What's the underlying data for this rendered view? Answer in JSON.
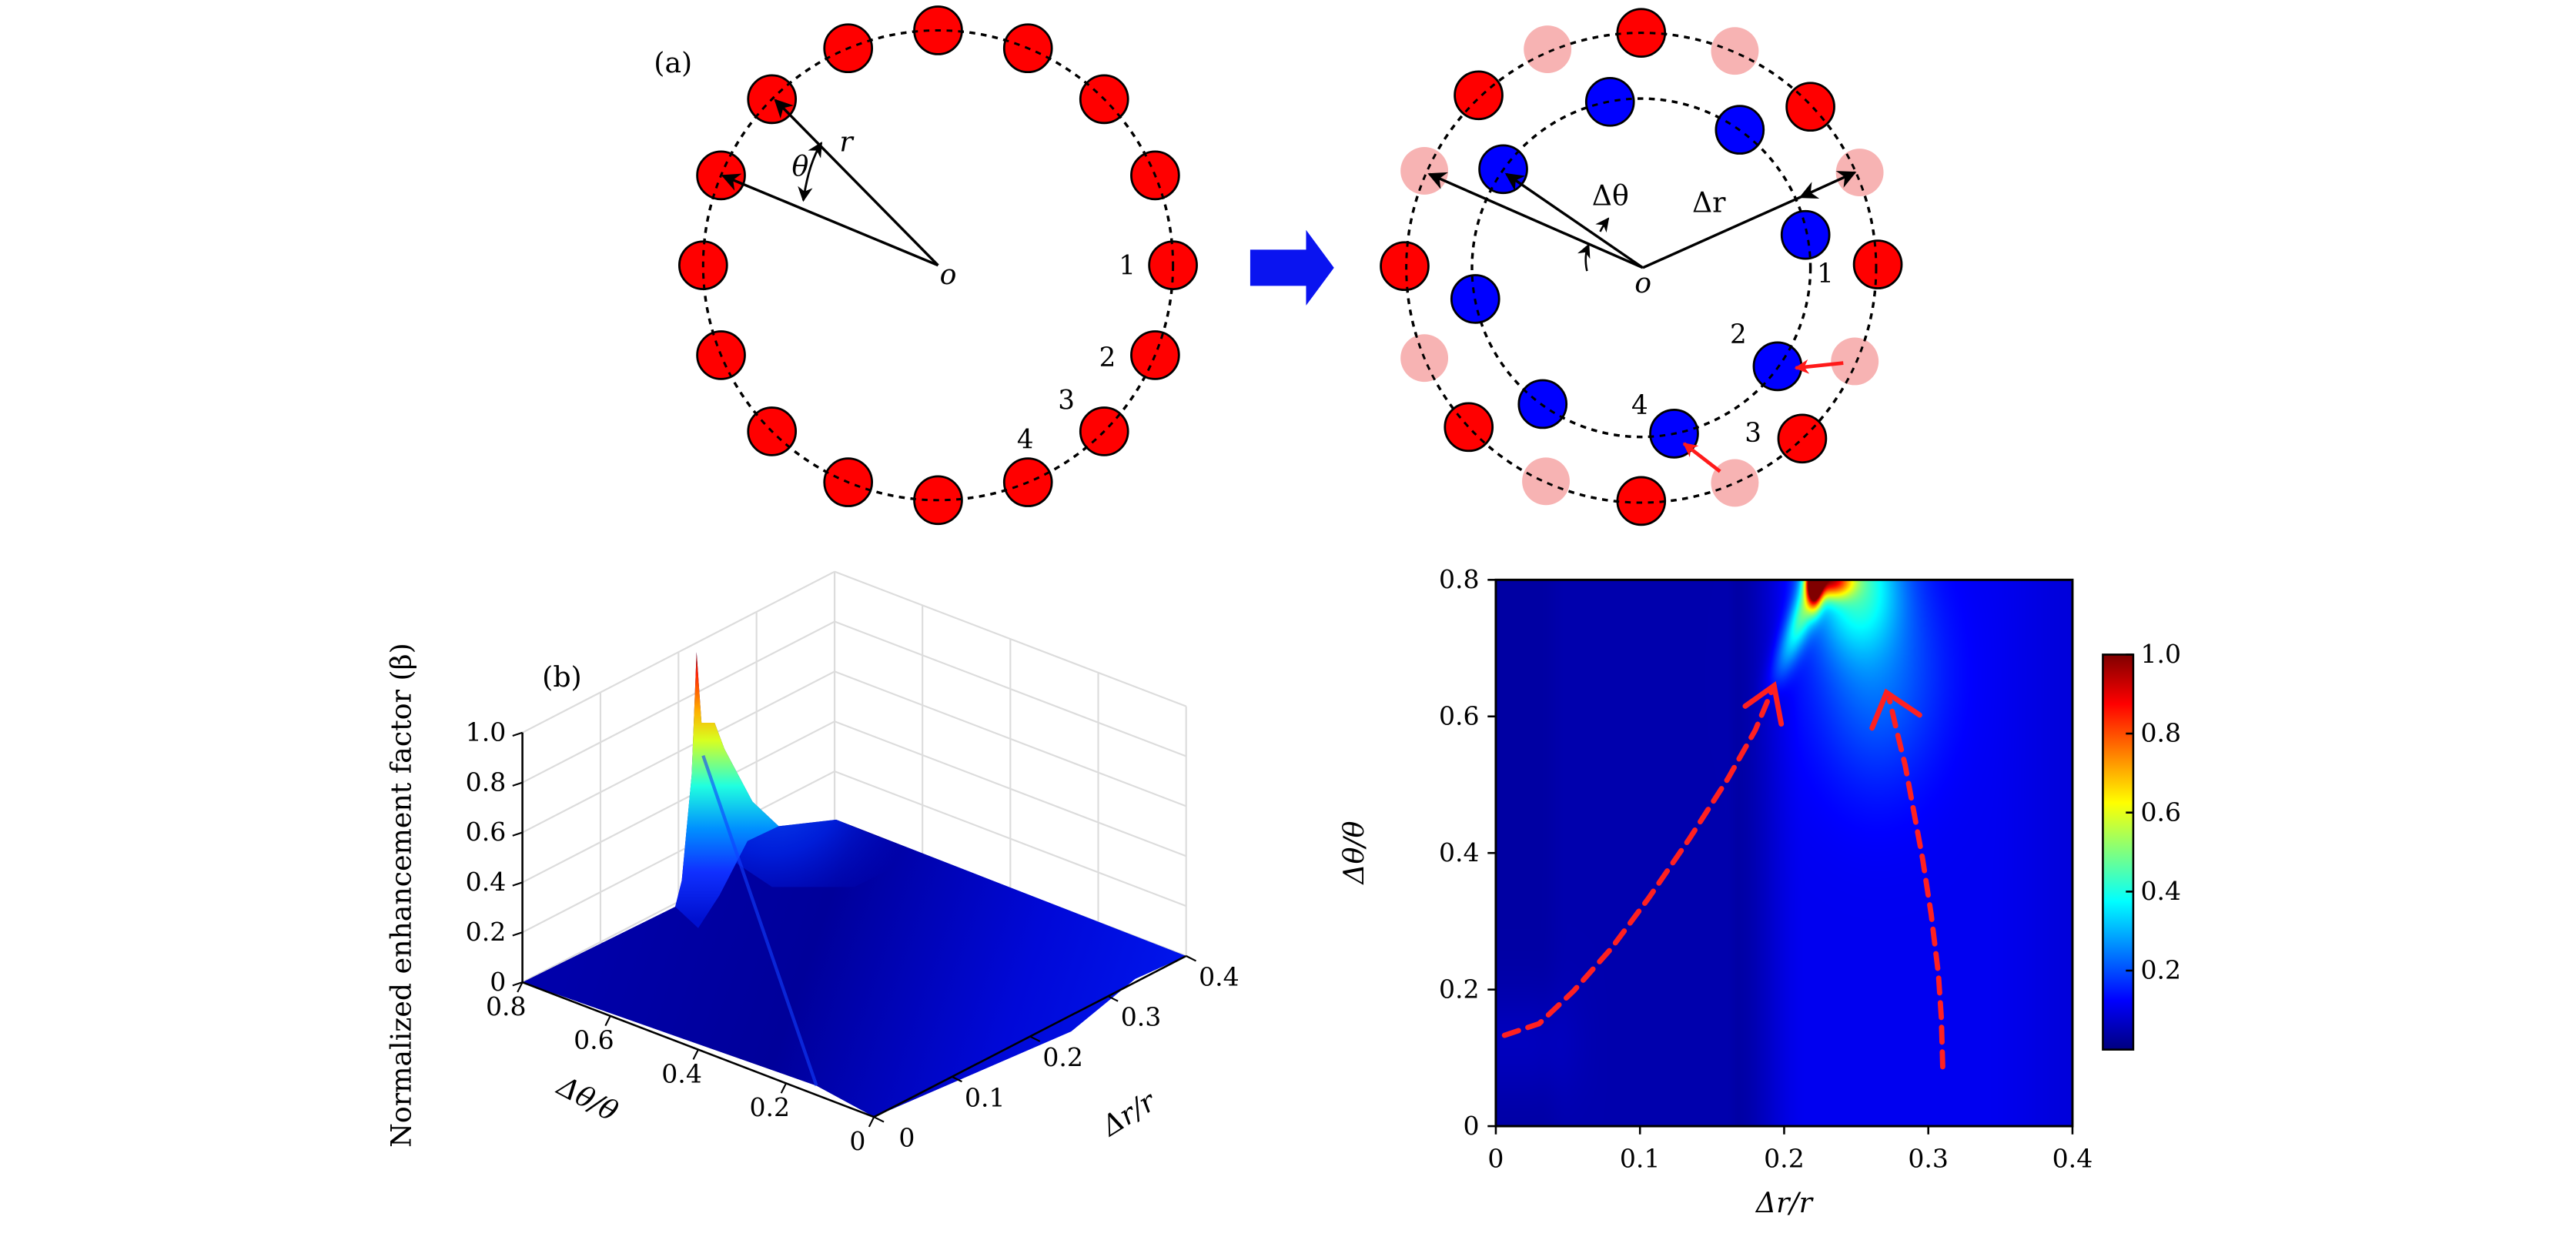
{
  "panel_a": {
    "label": "(a)",
    "left": {
      "theta_label": "θ",
      "r_label": "r",
      "origin_label": "o",
      "numbers": [
        "1",
        "2",
        "3",
        "4"
      ]
    },
    "right": {
      "dtheta_label": "Δθ",
      "dr_label": "Δr",
      "origin_label": "o",
      "numbers": [
        "1",
        "2",
        "3",
        "4"
      ]
    },
    "colors": {
      "outer_atom": "#ff0000",
      "displaced_ghost": "#f7b3b3",
      "inner_atom": "#0000ff",
      "transition_arrow": "#0a14f0",
      "move_arrow": "#ff1a1a"
    }
  },
  "chart_data": [
    {
      "type": "surface3d",
      "panel_label": "(b)",
      "zlabel": "Normalized enhancement factor (β)",
      "xlabel": "Δr/r",
      "ylabel": "Δθ/θ",
      "xlim": [
        0,
        0.4
      ],
      "ylim": [
        0,
        0.8
      ],
      "zlim": [
        0,
        1.0
      ],
      "xticks": [
        "0",
        "0.1",
        "0.2",
        "0.3",
        "0.4"
      ],
      "yticks": [
        "0.8",
        "0.6",
        "0.4",
        "0.2",
        "0"
      ],
      "zticks": [
        "1.0",
        "0.8",
        "0.6",
        "0.4",
        "0.2",
        "0"
      ],
      "peak": {
        "dr_r": 0.22,
        "dtheta_theta": 0.8,
        "value": 1.0
      },
      "secondary_peak": {
        "dr_r": 0.24,
        "dtheta_theta": 0.8,
        "value": 0.84
      },
      "colormap": "jet",
      "grid": true
    },
    {
      "type": "heatmap",
      "xlabel": "Δr/r",
      "ylabel": "Δθ/θ",
      "xlim": [
        0,
        0.4
      ],
      "ylim": [
        0,
        0.8
      ],
      "xticks": [
        "0",
        "0.1",
        "0.2",
        "0.3",
        "0.4"
      ],
      "yticks": [
        "0",
        "0.2",
        "0.4",
        "0.6",
        "0.8"
      ],
      "colorbar": {
        "range": [
          0,
          1.0
        ],
        "ticks": [
          "0.2",
          "0.4",
          "0.6",
          "0.8",
          "1.0"
        ],
        "colormap": "jet"
      },
      "hotspot": {
        "x": 0.222,
        "y": 0.8,
        "value": 1.0
      },
      "annotations": [
        {
          "type": "dashed-arrow",
          "color": "#ff2020",
          "points": [
            [
              0.006,
              0.133
            ],
            [
              0.03,
              0.15
            ],
            [
              0.054,
              0.198
            ],
            [
              0.08,
              0.26
            ],
            [
              0.106,
              0.334
            ],
            [
              0.134,
              0.42
            ],
            [
              0.161,
              0.509
            ],
            [
              0.18,
              0.58
            ],
            [
              0.193,
              0.645
            ]
          ],
          "head": [
            [
              0.173,
              0.615
            ],
            [
              0.193,
              0.645
            ],
            [
              0.198,
              0.589
            ]
          ]
        },
        {
          "type": "dashed-arrow",
          "color": "#ff2020",
          "points": [
            [
              0.31,
              0.087
            ],
            [
              0.309,
              0.16
            ],
            [
              0.307,
              0.223
            ],
            [
              0.302,
              0.31
            ],
            [
              0.296,
              0.392
            ],
            [
              0.29,
              0.46
            ],
            [
              0.284,
              0.528
            ],
            [
              0.278,
              0.58
            ],
            [
              0.273,
              0.625
            ]
          ],
          "head": [
            [
              0.261,
              0.583
            ],
            [
              0.271,
              0.635
            ],
            [
              0.294,
              0.602
            ]
          ]
        }
      ]
    }
  ]
}
